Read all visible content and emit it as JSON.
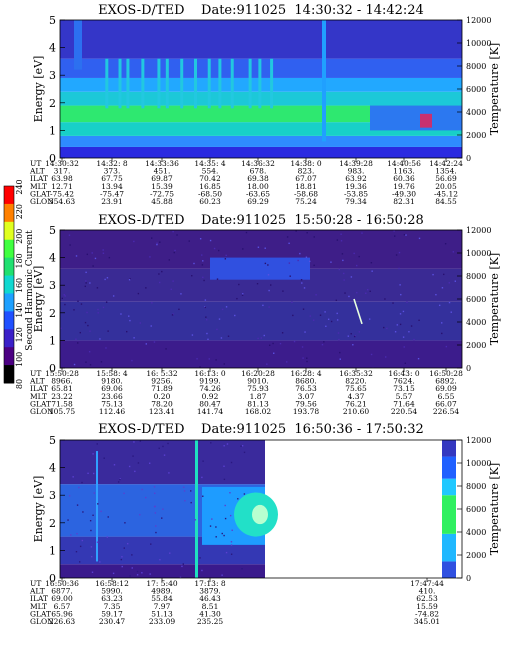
{
  "figure": {
    "colorbar": {
      "label": "Second Harmonic Current",
      "ticks": [
        "80",
        "100",
        "120",
        "140",
        "160",
        "180",
        "200",
        "220",
        "240"
      ],
      "colors": [
        "#000000",
        "#4b0082",
        "#3a20c8",
        "#2050ff",
        "#1ea0ff",
        "#10d8d0",
        "#20e070",
        "#40ff40",
        "#e0ff20",
        "#ff8000",
        "#ff0000"
      ]
    }
  },
  "chart_data": [
    {
      "type": "heatmap",
      "title": "EXOS-D/TED    Date:911025  14:30:32 - 14:42:24",
      "ylabel": "Energy [eV]",
      "y2label": "Temperature [K]",
      "ylim": [
        0,
        5
      ],
      "y2lim": [
        0,
        12000
      ],
      "yticks": [
        "0",
        "1",
        "2",
        "3",
        "4",
        "5"
      ],
      "y2ticks": [
        "0",
        "2000",
        "4000",
        "6000",
        "8000",
        "10000",
        "12000"
      ],
      "row_labels": [
        "UT",
        "ALT",
        "ILAT",
        "MLT",
        "GLAT",
        "GLON"
      ],
      "columns": [
        {
          "UT": "14:30:32",
          "ALT": "317.",
          "ILAT": "63.98",
          "MLT": "12.71",
          "GLAT": "-75.42",
          "GLON": "354.63"
        },
        {
          "UT": "14:32: 8",
          "ALT": "373.",
          "ILAT": "67.75",
          "MLT": "13.94",
          "GLAT": "-75.47",
          "GLON": "23.91"
        },
        {
          "UT": "14:33:36",
          "ALT": "451.",
          "ILAT": "69.87",
          "MLT": "15.39",
          "GLAT": "-72.75",
          "GLON": "45.88"
        },
        {
          "UT": "14:35: 4",
          "ALT": "554.",
          "ILAT": "70.42",
          "MLT": "16.85",
          "GLAT": "-68.50",
          "GLON": "60.23"
        },
        {
          "UT": "14:36:32",
          "ALT": "678.",
          "ILAT": "69.38",
          "MLT": "18.00",
          "GLAT": "-63.65",
          "GLON": "69.29"
        },
        {
          "UT": "14:38: 0",
          "ALT": "823.",
          "ILAT": "67.07",
          "MLT": "18.81",
          "GLAT": "-58.68",
          "GLON": "75.24"
        },
        {
          "UT": "14:39:28",
          "ALT": "983.",
          "ILAT": "63.92",
          "MLT": "19.36",
          "GLAT": "-53.85",
          "GLON": "79.34"
        },
        {
          "UT": "14:40:56",
          "ALT": "1163.",
          "ILAT": "60.36",
          "MLT": "19.76",
          "GLAT": "-49.30",
          "GLON": "82.31"
        },
        {
          "UT": "14:42:24",
          "ALT": "1354.",
          "ILAT": "56.69",
          "MLT": "20.05",
          "GLAT": "-45.12",
          "GLON": "84.55"
        }
      ],
      "bands": [
        {
          "from": 0.0,
          "to": 0.4,
          "color": "#2a2ae0"
        },
        {
          "from": 0.4,
          "to": 0.8,
          "color": "#2e8cff"
        },
        {
          "from": 0.8,
          "to": 1.3,
          "color": "#18d0c8"
        },
        {
          "from": 1.3,
          "to": 1.9,
          "color": "#2ee870"
        },
        {
          "from": 1.9,
          "to": 2.4,
          "color": "#1cc8d8"
        },
        {
          "from": 2.4,
          "to": 2.9,
          "color": "#22a8ff"
        },
        {
          "from": 2.9,
          "to": 3.6,
          "color": "#3060f0"
        },
        {
          "from": 3.6,
          "to": 5.0,
          "color": "#3436c8"
        }
      ]
    },
    {
      "type": "heatmap",
      "title": "EXOS-D/TED    Date:911025  15:50:28 - 16:50:28",
      "ylabel": "Energy [eV]",
      "y2label": "Temperature [K]",
      "ylim": [
        0,
        5
      ],
      "y2lim": [
        0,
        12000
      ],
      "yticks": [
        "0",
        "1",
        "2",
        "3",
        "4",
        "5"
      ],
      "y2ticks": [
        "0",
        "2000",
        "4000",
        "6000",
        "8000",
        "10000",
        "12000"
      ],
      "row_labels": [
        "UT",
        "ALT",
        "ILAT",
        "MLT",
        "GLAT",
        "GLON"
      ],
      "columns": [
        {
          "UT": "15:50:28",
          "ALT": "8966.",
          "ILAT": "65.81",
          "MLT": "23.22",
          "GLAT": "71.58",
          "GLON": "105.75"
        },
        {
          "UT": "15:58: 4",
          "ALT": "9180.",
          "ILAT": "69.06",
          "MLT": "23.66",
          "GLAT": "75.13",
          "GLON": "112.46"
        },
        {
          "UT": "16: 5:32",
          "ALT": "9256.",
          "ILAT": "71.89",
          "MLT": "0.20",
          "GLAT": "78.20",
          "GLON": "123.41"
        },
        {
          "UT": "16:13: 0",
          "ALT": "9199.",
          "ILAT": "74.26",
          "MLT": "0.92",
          "GLAT": "80.47",
          "GLON": "141.74"
        },
        {
          "UT": "16:20:28",
          "ALT": "9010.",
          "ILAT": "75.93",
          "MLT": "1.87",
          "GLAT": "81.13",
          "GLON": "168.02"
        },
        {
          "UT": "16:28: 4",
          "ALT": "8680.",
          "ILAT": "76.53",
          "MLT": "3.07",
          "GLAT": "79.56",
          "GLON": "193.78"
        },
        {
          "UT": "16:35:32",
          "ALT": "8220.",
          "ILAT": "75.65",
          "MLT": "4.37",
          "GLAT": "76.21",
          "GLON": "210.60"
        },
        {
          "UT": "16:43: 0",
          "ALT": "7624.",
          "ILAT": "73.15",
          "MLT": "5.57",
          "GLAT": "71.64",
          "GLON": "220.54"
        },
        {
          "UT": "16:50:28",
          "ALT": "6892.",
          "ILAT": "69.09",
          "MLT": "6.55",
          "GLAT": "66.07",
          "GLON": "226.54"
        }
      ],
      "bands": [
        {
          "from": 0.0,
          "to": 1.0,
          "color": "#3c1c8c"
        },
        {
          "from": 1.0,
          "to": 2.4,
          "color": "#34309c"
        },
        {
          "from": 2.4,
          "to": 3.6,
          "color": "#3a2a94"
        },
        {
          "from": 3.6,
          "to": 5.0,
          "color": "#3e1e88"
        }
      ]
    },
    {
      "type": "heatmap",
      "title": "EXOS-D/TED    Date:911025  16:50:36 - 17:50:32",
      "ylabel": "Energy [eV]",
      "y2label": "Temperature [K]",
      "ylim": [
        0,
        5
      ],
      "y2lim": [
        0,
        12000
      ],
      "yticks": [
        "0",
        "1",
        "2",
        "3",
        "4",
        "5"
      ],
      "y2ticks": [
        "0",
        "2000",
        "4000",
        "6000",
        "8000",
        "10000",
        "12000"
      ],
      "row_labels": [
        "UT",
        "ALT",
        "ILAT",
        "MLT",
        "GLAT",
        "GLON"
      ],
      "columns": [
        {
          "UT": "16:50:36",
          "ALT": "6877.",
          "ILAT": "69.00",
          "MLT": "6.57",
          "GLAT": "65.96",
          "GLON": "226.63"
        },
        {
          "UT": "16:58:12",
          "ALT": "5990.",
          "ILAT": "63.23",
          "MLT": "7.35",
          "GLAT": "59.17",
          "GLON": "230.47"
        },
        {
          "UT": "17: 5:40",
          "ALT": "4989.",
          "ILAT": "55.84",
          "MLT": "7.97",
          "GLAT": "51.13",
          "GLON": "233.09"
        },
        {
          "UT": "17:13: 8",
          "ALT": "3879.",
          "ILAT": "46.43",
          "MLT": "8.51",
          "GLAT": "41.30",
          "GLON": "235.25"
        },
        {
          "UT": "17:47:44",
          "ALT": "410.",
          "ILAT": "62.53",
          "MLT": "15.59",
          "GLAT": "-74.82",
          "GLON": "345.01"
        }
      ],
      "bands": [
        {
          "from": 0.0,
          "to": 0.5,
          "color": "#3a1a8c"
        },
        {
          "from": 0.5,
          "to": 1.5,
          "color": "#3438b4"
        },
        {
          "from": 1.5,
          "to": 3.4,
          "color": "#2c64e0"
        },
        {
          "from": 3.4,
          "to": 5.0,
          "color": "#3a2a9c"
        }
      ]
    }
  ]
}
